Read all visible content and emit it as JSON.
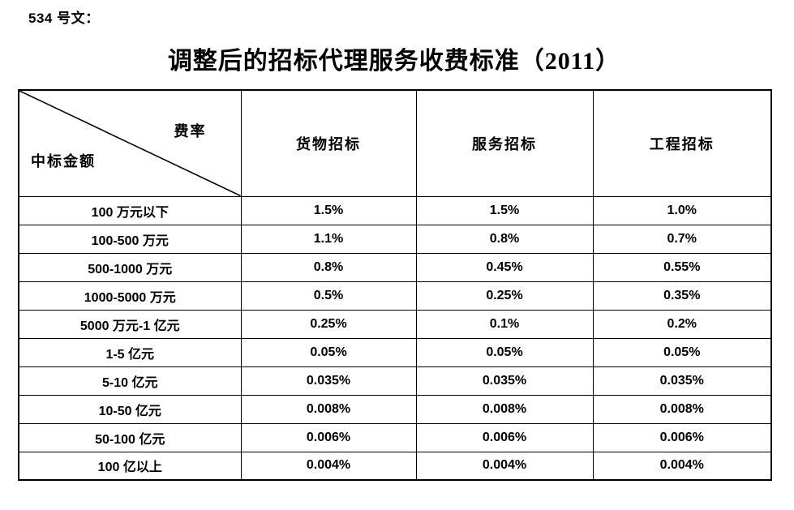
{
  "doc": {
    "label": "534 号文：",
    "title": "调整后的招标代理服务收费标准（2011）"
  },
  "table": {
    "corner": {
      "top_right": "费率",
      "bottom_left": "中标金额"
    },
    "columns": [
      "货物招标",
      "服务招标",
      "工程招标"
    ],
    "rows": [
      {
        "amount": "100 万元以下",
        "values": [
          "1.5%",
          "1.5%",
          "1.0%"
        ]
      },
      {
        "amount": "100-500 万元",
        "values": [
          "1.1%",
          "0.8%",
          "0.7%"
        ]
      },
      {
        "amount": "500-1000 万元",
        "values": [
          "0.8%",
          "0.45%",
          "0.55%"
        ]
      },
      {
        "amount": "1000-5000 万元",
        "values": [
          "0.5%",
          "0.25%",
          "0.35%"
        ]
      },
      {
        "amount": "5000 万元-1 亿元",
        "values": [
          "0.25%",
          "0.1%",
          "0.2%"
        ]
      },
      {
        "amount": "1-5 亿元",
        "values": [
          "0.05%",
          "0.05%",
          "0.05%"
        ]
      },
      {
        "amount": "5-10 亿元",
        "values": [
          "0.035%",
          "0.035%",
          "0.035%"
        ]
      },
      {
        "amount": "10-50 亿元",
        "values": [
          "0.008%",
          "0.008%",
          "0.008%"
        ]
      },
      {
        "amount": "50-100 亿元",
        "values": [
          "0.006%",
          "0.006%",
          "0.006%"
        ]
      },
      {
        "amount": "100 亿以上",
        "values": [
          "0.004%",
          "0.004%",
          "0.004%"
        ]
      }
    ]
  },
  "colors": {
    "text": "#000000",
    "border": "#000000",
    "background": "#ffffff"
  }
}
